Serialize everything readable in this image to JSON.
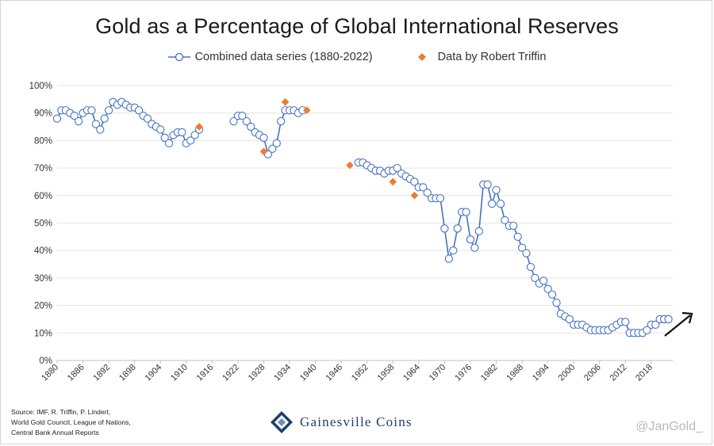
{
  "chart_data": {
    "type": "scatter",
    "title": "Gold as a Percentage of Global International Reserves",
    "xlabel": "",
    "ylabel": "",
    "xlim": [
      1880,
      2023
    ],
    "ylim": [
      0,
      100
    ],
    "x_ticks": [
      1880,
      1886,
      1892,
      1898,
      1904,
      1910,
      1916,
      1922,
      1928,
      1934,
      1940,
      1946,
      1952,
      1958,
      1964,
      1970,
      1976,
      1982,
      1988,
      1994,
      2000,
      2006,
      2012,
      2018
    ],
    "y_ticks": [
      0,
      10,
      20,
      30,
      40,
      50,
      60,
      70,
      80,
      90,
      100
    ],
    "y_tick_labels": [
      "0%",
      "10%",
      "20%",
      "30%",
      "40%",
      "50%",
      "60%",
      "70%",
      "80%",
      "90%",
      "100%"
    ],
    "grid": true,
    "legend_position": "top-center",
    "series": [
      {
        "name": "Combined data series (1880-2022)",
        "style": "line-with-open-circles",
        "color": "#4472C4",
        "segments": [
          {
            "x": [
              1880,
              1881,
              1882,
              1883,
              1884,
              1885,
              1886,
              1887,
              1888,
              1889,
              1890,
              1891,
              1892,
              1893,
              1894,
              1895,
              1896,
              1897,
              1898,
              1899,
              1900,
              1901,
              1902,
              1903,
              1904,
              1905,
              1906,
              1907,
              1908,
              1909,
              1910,
              1911,
              1912,
              1913
            ],
            "y": [
              88,
              91,
              91,
              90,
              89,
              87,
              90,
              91,
              91,
              86,
              84,
              88,
              91,
              94,
              93,
              94,
              93,
              92,
              92,
              91,
              89,
              88,
              86,
              85,
              84,
              81,
              79,
              82,
              83,
              83,
              79,
              80,
              82,
              84
            ]
          },
          {
            "x": [
              1921,
              1922,
              1923,
              1924,
              1925,
              1926,
              1927,
              1928,
              1929,
              1930,
              1931,
              1932,
              1933,
              1934,
              1935,
              1936,
              1937
            ],
            "y": [
              87,
              89,
              89,
              87,
              85,
              83,
              82,
              81,
              75,
              77,
              79,
              87,
              91,
              91,
              91,
              90,
              91
            ]
          },
          {
            "x": [
              1950,
              1951,
              1952,
              1953,
              1954,
              1955,
              1956,
              1957,
              1958,
              1959,
              1960,
              1961,
              1962,
              1963,
              1964,
              1965,
              1966,
              1967,
              1968,
              1969,
              1970,
              1971,
              1972,
              1973,
              1974,
              1975,
              1976,
              1977,
              1978,
              1979,
              1980,
              1981,
              1982,
              1983,
              1984,
              1985,
              1986,
              1987,
              1988,
              1989,
              1990,
              1991,
              1992,
              1993,
              1994,
              1995,
              1996,
              1997,
              1998,
              1999,
              2000,
              2001,
              2002,
              2003,
              2004,
              2005,
              2006,
              2007,
              2008,
              2009,
              2010,
              2011,
              2012,
              2013,
              2014,
              2015,
              2016,
              2017,
              2018,
              2019,
              2020,
              2021,
              2022
            ],
            "y": [
              72,
              72,
              71,
              70,
              69,
              69,
              68,
              69,
              69,
              70,
              68,
              67,
              66,
              65,
              63,
              63,
              61,
              59,
              59,
              59,
              48,
              37,
              40,
              48,
              54,
              54,
              44,
              41,
              47,
              64,
              64,
              57,
              62,
              57,
              51,
              49,
              49,
              45,
              41,
              39,
              34,
              30,
              28,
              29,
              26,
              24,
              21,
              17,
              16,
              15,
              13,
              13,
              13,
              12,
              11,
              11,
              11,
              11,
              11,
              12,
              13,
              14,
              14,
              10,
              10,
              10,
              10,
              11,
              13,
              13,
              15,
              15,
              15
            ]
          }
        ]
      },
      {
        "name": "Data by Robert Triffin",
        "style": "orange-diamonds",
        "color": "#ED7D31",
        "x": [
          1913,
          1928,
          1933,
          1938,
          1948,
          1958,
          1963
        ],
        "y": [
          85,
          76,
          94,
          91,
          71,
          65,
          60
        ]
      }
    ],
    "annotations": [
      "upward-arrow-right-edge"
    ]
  },
  "legend": {
    "combined_label": "Combined data series (1880-2022)",
    "triffin_label": "Data by Robert Triffin"
  },
  "source_lines": [
    "Source: IMF, R. Triffin, P. Lindert,",
    "World Gold Council, League of Nations,",
    "Central Bank Annual Reports"
  ],
  "brand": {
    "name": "Gainesville Coins",
    "logo_icon": "gainesville-coins-logo-icon"
  },
  "handle": "@JanGold_"
}
